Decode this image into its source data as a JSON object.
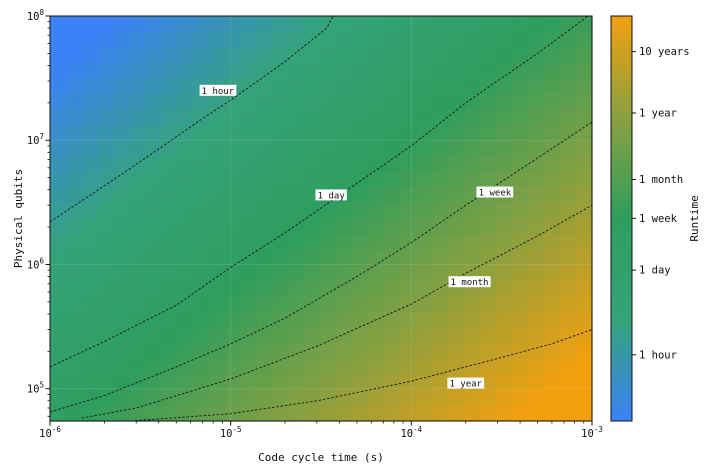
{
  "chart_data": {
    "type": "heatmap",
    "xlabel": "Code cycle time (s)",
    "ylabel": "Physical qubits",
    "colorbar_label": "Runtime",
    "xscale": "log",
    "yscale": "log",
    "xlim": [
      1e-06,
      0.001
    ],
    "ylim": [
      55000,
      100000000
    ],
    "x_ticks": [
      {
        "base": "10",
        "exp": "-6"
      },
      {
        "base": "10",
        "exp": "-5"
      },
      {
        "base": "10",
        "exp": "-4"
      },
      {
        "base": "10",
        "exp": "-3"
      }
    ],
    "y_ticks": [
      {
        "base": "10",
        "exp": "5",
        "value": 100000
      },
      {
        "base": "10",
        "exp": "6",
        "value": 1000000
      },
      {
        "base": "10",
        "exp": "7",
        "value": 10000000
      },
      {
        "base": "10",
        "exp": "8",
        "value": 100000000
      }
    ],
    "colormap": [
      "#3b82f6",
      "#35a37a",
      "#2e9e5e",
      "#8aa040",
      "#f2a010"
    ],
    "colorbar_ticks": [
      {
        "label": "10 years",
        "seconds": 315360000
      },
      {
        "label": "1 year",
        "seconds": 31536000
      },
      {
        "label": "1 month",
        "seconds": 2592000
      },
      {
        "label": "1 week",
        "seconds": 604800
      },
      {
        "label": "1 day",
        "seconds": 86400
      },
      {
        "label": "1 hour",
        "seconds": 3600
      }
    ],
    "colorbar_range_seconds": [
      300,
      1200000000
    ],
    "contours": [
      {
        "label": "1 hour",
        "points": [
          [
            1e-06,
            2200000
          ],
          [
            2e-06,
            4300000
          ],
          [
            4e-06,
            8500000
          ],
          [
            7e-06,
            15000000
          ],
          [
            1e-05,
            21000000
          ],
          [
            2e-05,
            43000000
          ],
          [
            3.4e-05,
            80000000
          ],
          [
            3.7e-05,
            100000000
          ]
        ],
        "label_at": [
          8.5e-06,
          25000000
        ]
      },
      {
        "label": "1 day",
        "points": [
          [
            1e-06,
            150000
          ],
          [
            2e-06,
            240000
          ],
          [
            5e-06,
            470000
          ],
          [
            1e-05,
            950000
          ],
          [
            2e-05,
            1800000
          ],
          [
            5e-05,
            4500000
          ],
          [
            0.0001,
            9000000
          ],
          [
            0.0002,
            20000000
          ],
          [
            0.0005,
            50000000
          ],
          [
            0.00095,
            100000000
          ]
        ],
        "label_at": [
          3.6e-05,
          3600000
        ]
      },
      {
        "label": "1 week",
        "points": [
          [
            1e-06,
            65000
          ],
          [
            2e-06,
            88000
          ],
          [
            5e-06,
            150000
          ],
          [
            1e-05,
            230000
          ],
          [
            2e-05,
            370000
          ],
          [
            5e-05,
            800000
          ],
          [
            0.0001,
            1500000
          ],
          [
            0.0002,
            3000000
          ],
          [
            0.0005,
            7200000
          ],
          [
            0.001,
            14000000
          ]
        ],
        "label_at": [
          0.00029,
          3800000
        ]
      },
      {
        "label": "1 month",
        "points": [
          [
            1.5e-06,
            58000
          ],
          [
            3e-06,
            70000
          ],
          [
            1e-05,
            120000
          ],
          [
            3e-05,
            220000
          ],
          [
            0.0001,
            480000
          ],
          [
            0.0002,
            850000
          ],
          [
            0.0005,
            1700000
          ],
          [
            0.001,
            3000000
          ]
        ],
        "label_at": [
          0.00021,
          720000
        ]
      },
      {
        "label": "1 year",
        "points": [
          [
            2.8e-06,
            55000
          ],
          [
            1e-05,
            63000
          ],
          [
            3e-05,
            80000
          ],
          [
            0.0001,
            115000
          ],
          [
            0.0003,
            175000
          ],
          [
            0.0006,
            230000
          ],
          [
            0.001,
            300000
          ]
        ],
        "label_at": [
          0.0002,
          110000
        ]
      }
    ]
  }
}
